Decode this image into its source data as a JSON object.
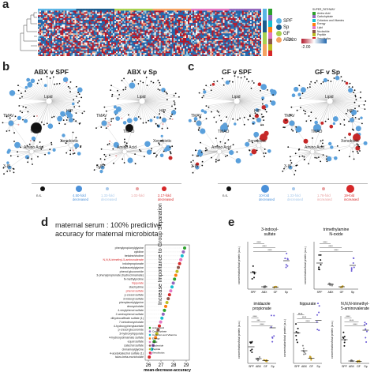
{
  "panels": {
    "a": {
      "label": "a",
      "groups": [
        {
          "name": "SPF",
          "color": "#5ab4e5"
        },
        {
          "name": "Sp",
          "color": "#1a5c8e"
        },
        {
          "name": "GF",
          "color": "#a8d04f"
        },
        {
          "name": "ABX",
          "color": "#f4a261"
        }
      ],
      "super_pathway_title": "SUPER_PATHWAY",
      "super_pathways": [
        {
          "name": "Amino Acid",
          "color": "#2ca02c"
        },
        {
          "name": "Carbohydrate",
          "color": "#9467bd"
        },
        {
          "name": "Cofactors and Vitamins",
          "color": "#17becf"
        },
        {
          "name": "Energy",
          "color": "#ff7f0e"
        },
        {
          "name": "Lipid",
          "color": "#e377c2"
        },
        {
          "name": "Nucleotide",
          "color": "#8c564b"
        },
        {
          "name": "Peptide",
          "color": "#bcbd22"
        },
        {
          "name": "Xenobiotics",
          "color": "#d62728"
        }
      ],
      "scale_max": "2.00",
      "scale_min": "-2.00"
    },
    "b": {
      "label": "b",
      "titles": [
        "ABX v SPF",
        "ABX v Sp"
      ],
      "nodes": [
        "Lipid",
        "TMAV",
        "TMAO",
        "HIP",
        "Xenobiotic",
        "Amino Acid",
        "3-IS"
      ],
      "legend": [
        {
          "label": "n.s.",
          "color": "#111111"
        },
        {
          "label": "4.50-fold\ndecreased",
          "color": "#4a90d9"
        },
        {
          "label": "1.33-fold\ndecreased",
          "color": "#a7c8ea"
        },
        {
          "label": "1.02-fold",
          "color": "#e8a0a0"
        },
        {
          "label": "2.17-fold\ndecreased",
          "color": "#d62728"
        }
      ]
    },
    "c": {
      "label": "c",
      "titles": [
        "GF v SPF",
        "GF v Sp"
      ],
      "nodes": [
        "Lipid",
        "TMAV",
        "TMAO",
        "HIP",
        "Xenobiotic",
        "Amino Acid",
        "3-IS"
      ],
      "legend": [
        {
          "label": "n.s.",
          "color": "#111111"
        },
        {
          "label": "10-fold\ndecreased",
          "color": "#4a90d9"
        },
        {
          "label": "1.33-fold\ndecreased",
          "color": "#a7c8ea"
        },
        {
          "label": "1.78-fold\nincreased",
          "color": "#e8a0a0"
        },
        {
          "label": "19-fold\nincreased",
          "color": "#d62728"
        }
      ]
    },
    "d": {
      "label": "d",
      "title_line1": "maternal serum : 100% predictive",
      "title_line2": "accuracy for maternal microbiota",
      "y_axis_label": "Increase Importance to Group Separation",
      "x_axis_label": "mean-decrease-accuracy",
      "x_ticks": [
        "26",
        "27",
        "28",
        "29"
      ],
      "metabolites": [
        {
          "name": "phenylpropionylglycine",
          "red": false
        },
        {
          "name": "cytidine",
          "red": false
        },
        {
          "name": "betaine/choline",
          "red": false
        },
        {
          "name": "N,N,N-trimethyl-5-aminovalerate",
          "red": true
        },
        {
          "name": "indolepropionate",
          "red": false
        },
        {
          "name": "indoleacetylglycine",
          "red": false
        },
        {
          "name": "phenol glucuronide",
          "red": false
        },
        {
          "name": "3-phenylpropionate (hydrocinnamate)",
          "red": false
        },
        {
          "name": "N-methylproline",
          "red": false
        },
        {
          "name": "hippurate",
          "red": true
        },
        {
          "name": "stachydrine",
          "red": false
        },
        {
          "name": "phenol sulfate",
          "red": true
        },
        {
          "name": "p-cresol sulfate",
          "red": false
        },
        {
          "name": "3-indoxyl sulfate",
          "red": false
        },
        {
          "name": "phenylacetylglycine",
          "red": false
        },
        {
          "name": "deoxycholate",
          "red": false
        },
        {
          "name": "4-vinylphenol sulfate",
          "red": false
        },
        {
          "name": "2-aminophenol sulfate",
          "red": false
        },
        {
          "name": "dihydrocaffeate sulfate (1)",
          "red": false
        },
        {
          "name": "7-ketodeoxycholate",
          "red": false
        },
        {
          "name": "4-hydroxyphenylacetate",
          "red": false
        },
        {
          "name": "p-cresol glucuronide",
          "red": false
        },
        {
          "name": "3-hydroxyhippurate",
          "red": false
        },
        {
          "name": "4-hydroxycinnamate sulfate",
          "red": false
        },
        {
          "name": "equol sulfate",
          "red": false
        },
        {
          "name": "catechol sulfate",
          "red": false
        },
        {
          "name": "cinnamoylglycine",
          "red": false
        },
        {
          "name": "4-acetylcatechol sulfate (1)",
          "red": false
        },
        {
          "name": "tauro-beta-muricholate",
          "red": false
        }
      ],
      "legend": [
        {
          "label": "Amino Acid",
          "color": "#2ca02c"
        },
        {
          "label": "Carbohydrate",
          "color": "#9467bd"
        },
        {
          "label": "Cofactors and Vitamins",
          "color": "#17becf"
        },
        {
          "label": "Energy",
          "color": "#ff7f0e"
        },
        {
          "label": "Lipid",
          "color": "#e377c2"
        },
        {
          "label": "Nucleotide",
          "color": "#8c564b"
        },
        {
          "label": "Peptide",
          "color": "#bcbd22"
        },
        {
          "label": "Xenobiotics",
          "color": "#d62728"
        }
      ]
    },
    "e": {
      "label": "e",
      "y_axis_label": "concentration/total protein (a.u.)",
      "x_groups": [
        "SPF",
        "ABX",
        "GF",
        "Sp"
      ],
      "subplots": [
        {
          "title": "3-indoxyl-\nsulfate",
          "sig": [
            "****",
            "****",
            "****"
          ]
        },
        {
          "title": "trimethylamine\nN-oxide",
          "sig": [
            "****",
            "****",
            "****"
          ]
        },
        {
          "title": "imidazole\npropionate",
          "sig": [
            "****",
            "***",
            "****"
          ]
        },
        {
          "title": "hippurate",
          "sig": [
            "n.s.",
            "****",
            "****"
          ]
        },
        {
          "title": "N,N,N-trimethyl-\n5-aminovalerate",
          "sig": [
            "****",
            "****",
            "****"
          ]
        }
      ]
    }
  }
}
